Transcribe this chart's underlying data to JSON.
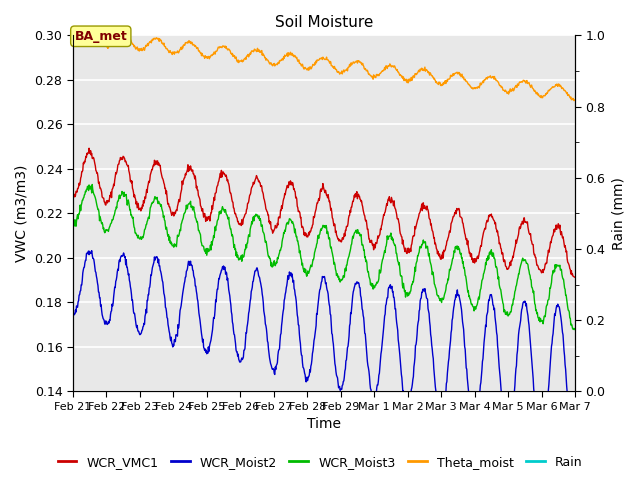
{
  "title": "Soil Moisture",
  "xlabel": "Time",
  "ylabel_left": "VWC (m3/m3)",
  "ylabel_right": "Rain (mm)",
  "ylim_left": [
    0.14,
    0.3
  ],
  "ylim_right": [
    0.0,
    1.0
  ],
  "yticks_left": [
    0.14,
    0.16,
    0.18,
    0.2,
    0.22,
    0.24,
    0.26,
    0.28,
    0.3
  ],
  "yticks_right_major": [
    0.0,
    0.2,
    0.4,
    0.6,
    0.8,
    1.0
  ],
  "yticks_right_minor": [
    0.1,
    0.3,
    0.5,
    0.7,
    0.9
  ],
  "annotation_text": "BA_met",
  "colors": {
    "WCR_VMC1": "#cc0000",
    "WCR_Moist2": "#0000cc",
    "WCR_Moist3": "#00bb00",
    "Theta_moist": "#ff9900",
    "Rain": "#00cccc"
  },
  "background_color": "#e8e8e8",
  "grid_color": "#ffffff",
  "n_points": 960,
  "tick_labels": [
    "Feb 21",
    "Feb 22",
    "Feb 23",
    "Feb 24",
    "Feb 25",
    "Feb 26",
    "Feb 27",
    "Feb 28",
    "Feb 29",
    "Mar 1",
    "Mar 2",
    "Mar 3",
    "Mar 4",
    "Mar 5",
    "Mar 6",
    "Mar 7"
  ],
  "legend_labels": [
    "WCR_VMC1",
    "WCR_Moist2",
    "WCR_Moist3",
    "Theta_moist",
    "Rain"
  ]
}
